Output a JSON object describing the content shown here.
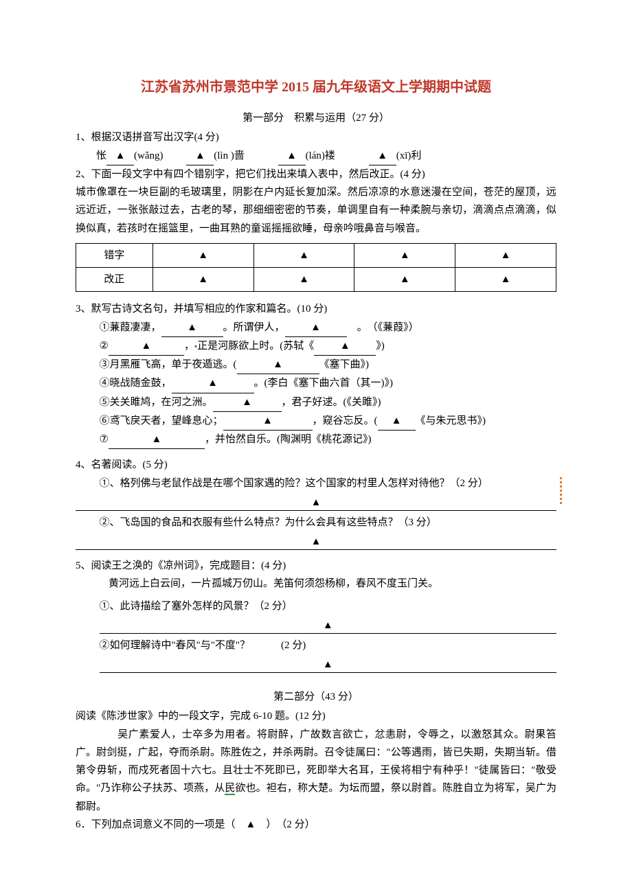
{
  "title": {
    "text": "江苏省苏州市景范中学 2015 届九年级语文上学期期中试题",
    "color": "#c0372a",
    "fontsize": 20
  },
  "colors": {
    "text": "#000000",
    "background": "#ffffff",
    "border": "#000000",
    "accent_green": "#3a8f3a",
    "accent_orange": "#d97a2a"
  },
  "part1": {
    "header": "第一部分　积累与运用（27 分）",
    "q1": {
      "stem": "1、根据汉语拼音写出汉字(4 分)",
      "line": "　　怅",
      "pinyin1": "(wǎng)",
      "pinyin2_label": "(lìn )啬",
      "pinyin3_label": "(lán)褛",
      "pinyin4_label": "(xī)利",
      "tri": "▲"
    },
    "q2": {
      "stem": "2、下面一段文字中有四个错别字，把它们找出来填入表中，然后改正。(4 分)",
      "passage": "城市像罩在一块巨副的毛玻璃里，阴影在户内延长复加深。然后凉凉的水意迷漫在空间，苍茫的屋顶，远远近近，一张张敲过去，古老的琴，那细细密密的节奏，单调里自有一种柔腕与亲切，滴滴点点滴滴，似换似真，若孩时在摇篮里，一曲耳熟的童谣摇摇欲睡，母亲吟哦鼻音与喉音。",
      "table": {
        "row1_label": "错字",
        "row2_label": "改正",
        "tri": "▲",
        "cols": 4
      }
    },
    "q3": {
      "stem": "3、默写古诗文名句，并填写相应的作家和篇名。(10 分)",
      "items": [
        {
          "n": "①",
          "text_a": "蒹葭凄凄，",
          "text_b": "。所谓伊人，",
          "text_c": "。　（《蒹葭》）"
        },
        {
          "n": "②",
          "text_a": "",
          "text_b": "，",
          "green": "正",
          "text_c": "是河豚欲上时。(苏轼《",
          "text_d": "》)"
        },
        {
          "n": "③",
          "text_a": "月黑雁飞高，单于夜遁逃。(",
          "text_b": "《塞下曲》)"
        },
        {
          "n": "④",
          "text_a": "晓战随金鼓，",
          "text_b": "。(李白《塞下曲六首（其一)》)"
        },
        {
          "n": "⑤",
          "text_a": "关关雎鸠，在河之洲。",
          "text_b": "，君子好逑。(《关雎》)"
        },
        {
          "n": "⑥",
          "text_a": "鸢飞戾天者，望峰息心；",
          "text_b": "，窥谷忘反。(",
          "text_c": "《与朱元思书》)"
        },
        {
          "n": "⑦",
          "text_a": "",
          "text_b": "，并怡然自乐。(陶渊明《桃花源记》)"
        }
      ],
      "tri": "▲"
    },
    "q4": {
      "stem": "4、名著阅读。(5 分)",
      "sub1": "①、格列佛与老鼠作战是在哪个国家遇的险？这个国家的村里人怎样对待他？（2 分）",
      "sub2": "②、飞岛国的食品和衣服有些什么特点？为什么会具有这些特点？（3 分）",
      "tri": "▲"
    },
    "q5": {
      "stem": "5、阅读王之涣的《凉州词》，完成题目：(4 分)",
      "poem": "黄河远上白云间，一片孤城万仞山。羌笛何须怨杨柳，春风不度玉门关。",
      "sub1": "①、此诗描绘了塞外怎样的风景？（2 分）",
      "sub2": "②如何理解诗中\"春风\"与\"不度\"？　　　(2 分)",
      "tri": "▲"
    }
  },
  "part2": {
    "header": "第二部分（43 分）",
    "intro": "阅读《陈涉世家》中的一段文字，完成 6-10 题。(12 分)",
    "passage": "　　吴广素爱人，士卒多为用者。将尉醉，广故数言欲亡，忿恚尉，令辱之，以激怒其众。尉果笞广。尉剑挺，广起，夺而杀尉。陈胜佐之，并杀两尉。召令徒属曰：\"公等遇雨，皆已失期，失期当斩。借第令毋斩，而戍死者固十六七。且壮士不死即已，死即举大名耳，王侯将相宁有种乎！\"徒属皆曰：\"敬受命。\"乃诈称公子扶苏、项燕，从民欲也。袒右，称大楚。为坛而盟，祭以尉首。陈胜自立为将军，吴广为都尉。",
    "q6": "6．下列加点词意义不同的一项是（　▲　）　（2 分）",
    "green_marker": "民"
  }
}
